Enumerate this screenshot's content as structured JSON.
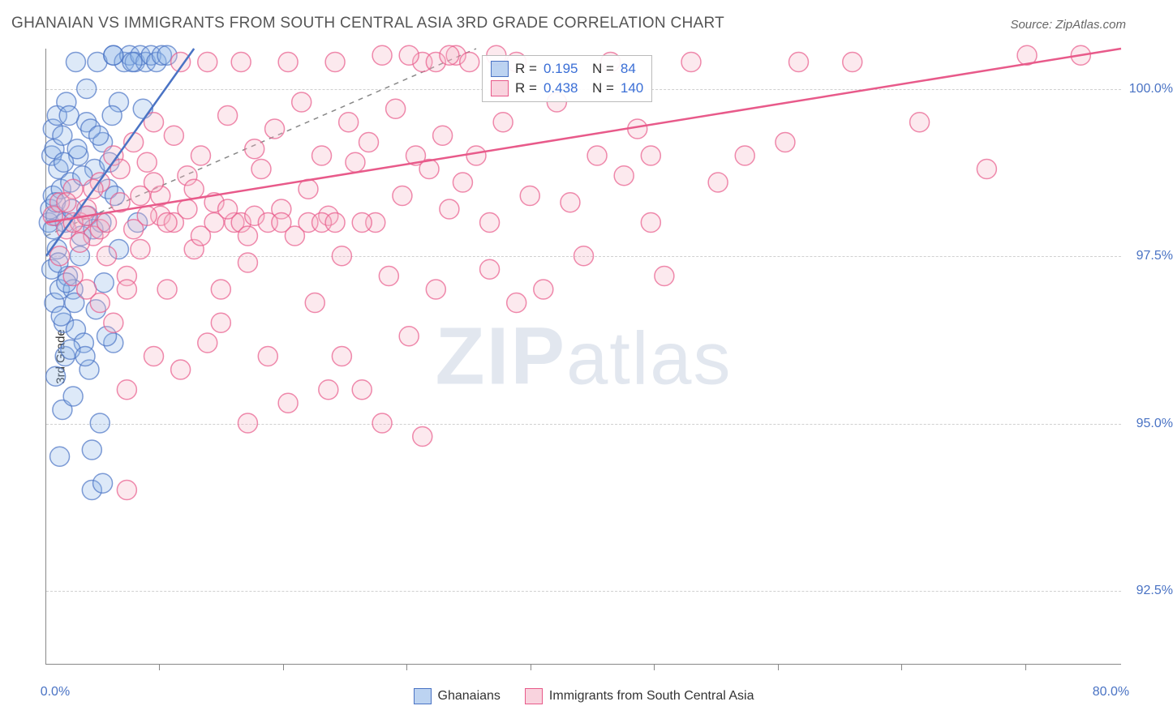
{
  "title": "GHANAIAN VS IMMIGRANTS FROM SOUTH CENTRAL ASIA 3RD GRADE CORRELATION CHART",
  "source": "Source: ZipAtlas.com",
  "watermark_a": "ZIP",
  "watermark_b": "atlas",
  "chart": {
    "type": "scatter",
    "ylabel": "3rd Grade",
    "xlim": [
      0,
      80
    ],
    "ylim": [
      91.4,
      100.6
    ],
    "xtick_positions_pct": [
      10.5,
      22.0,
      33.5,
      45.0,
      56.5,
      68.0,
      79.5,
      91.0
    ],
    "yticks": [
      {
        "val": 92.5,
        "label": "92.5%"
      },
      {
        "val": 95.0,
        "label": "95.0%"
      },
      {
        "val": 97.5,
        "label": "97.5%"
      },
      {
        "val": 100.0,
        "label": "100.0%"
      }
    ],
    "xlabels": [
      {
        "pos_pct": 0,
        "label": "0.0%"
      },
      {
        "pos_pct": 100,
        "label": "80.0%"
      }
    ],
    "background_color": "#ffffff",
    "grid_color": "#d0d0d0",
    "marker_radius": 12,
    "marker_fill_opacity": 0.3,
    "marker_stroke_width": 1.5,
    "trendline_width": 2.5,
    "dashed_ref_line": {
      "x1": 0,
      "y1": 97.8,
      "x2": 32,
      "y2": 100.6,
      "color": "#888888"
    },
    "series": [
      {
        "name": "Ghanaians",
        "color_fill": "#8fb5e8",
        "color_stroke": "#4a73c4",
        "R": "0.195",
        "N": "84",
        "trendline": {
          "x1": 0,
          "y1": 97.5,
          "x2": 11,
          "y2": 100.6
        },
        "points": [
          [
            0.2,
            98.0
          ],
          [
            0.3,
            98.2
          ],
          [
            0.4,
            97.3
          ],
          [
            0.5,
            98.4
          ],
          [
            0.6,
            96.8
          ],
          [
            0.7,
            98.1
          ],
          [
            0.8,
            97.6
          ],
          [
            0.4,
            99.0
          ],
          [
            0.5,
            99.4
          ],
          [
            0.6,
            99.1
          ],
          [
            0.8,
            99.6
          ],
          [
            0.9,
            98.8
          ],
          [
            1.0,
            97.0
          ],
          [
            1.1,
            98.5
          ],
          [
            1.2,
            99.3
          ],
          [
            1.3,
            96.5
          ],
          [
            1.4,
            98.0
          ],
          [
            1.5,
            99.8
          ],
          [
            1.6,
            97.2
          ],
          [
            1.8,
            98.6
          ],
          [
            2.0,
            97.0
          ],
          [
            2.2,
            96.4
          ],
          [
            2.4,
            99.0
          ],
          [
            2.6,
            97.8
          ],
          [
            2.8,
            96.2
          ],
          [
            3.0,
            99.5
          ],
          [
            3.2,
            95.8
          ],
          [
            3.4,
            94.6
          ],
          [
            3.6,
            98.8
          ],
          [
            3.0,
            100.0
          ],
          [
            3.4,
            94.0
          ],
          [
            1.0,
            94.5
          ],
          [
            1.2,
            95.2
          ],
          [
            1.4,
            96.0
          ],
          [
            0.7,
            95.7
          ],
          [
            4.0,
            95.0
          ],
          [
            4.2,
            94.1
          ],
          [
            1.8,
            96.1
          ],
          [
            2.0,
            95.4
          ],
          [
            2.2,
            100.4
          ],
          [
            5.0,
            100.5
          ],
          [
            5.4,
            99.8
          ],
          [
            5.8,
            100.4
          ],
          [
            6.2,
            100.5
          ],
          [
            6.6,
            100.4
          ],
          [
            7.0,
            100.5
          ],
          [
            7.4,
            100.4
          ],
          [
            7.8,
            100.5
          ],
          [
            8.2,
            100.4
          ],
          [
            8.6,
            100.5
          ],
          [
            6.8,
            98.0
          ],
          [
            7.2,
            99.7
          ],
          [
            3.8,
            100.4
          ],
          [
            4.2,
            99.2
          ],
          [
            4.6,
            98.5
          ],
          [
            5.0,
            96.2
          ],
          [
            5.4,
            97.6
          ],
          [
            0.5,
            97.9
          ],
          [
            0.7,
            98.3
          ],
          [
            0.9,
            97.4
          ],
          [
            1.1,
            96.6
          ],
          [
            1.3,
            98.9
          ],
          [
            1.5,
            97.1
          ],
          [
            1.7,
            99.6
          ],
          [
            1.9,
            98.2
          ],
          [
            2.1,
            96.8
          ],
          [
            2.3,
            99.1
          ],
          [
            2.5,
            97.5
          ],
          [
            2.7,
            98.7
          ],
          [
            2.9,
            96.0
          ],
          [
            3.1,
            98.1
          ],
          [
            3.3,
            99.4
          ],
          [
            3.5,
            97.9
          ],
          [
            3.7,
            96.7
          ],
          [
            3.9,
            99.3
          ],
          [
            4.1,
            98.0
          ],
          [
            4.3,
            97.1
          ],
          [
            4.5,
            96.3
          ],
          [
            4.7,
            98.9
          ],
          [
            4.9,
            99.6
          ],
          [
            5.1,
            98.4
          ],
          [
            9.0,
            100.5
          ],
          [
            5.0,
            100.5
          ],
          [
            6.4,
            100.4
          ]
        ]
      },
      {
        "name": "Immigrants from South Central Asia",
        "color_fill": "#f5b5c8",
        "color_stroke": "#e85a8a",
        "R": "0.438",
        "N": "140",
        "trendline": {
          "x1": 0,
          "y1": 98.0,
          "x2": 80,
          "y2": 100.6
        },
        "points": [
          [
            0.5,
            98.1
          ],
          [
            1.0,
            98.3
          ],
          [
            1.5,
            97.9
          ],
          [
            2.0,
            98.5
          ],
          [
            2.5,
            98.0
          ],
          [
            3.0,
            98.2
          ],
          [
            3.5,
            97.8
          ],
          [
            4.0,
            98.6
          ],
          [
            4.5,
            97.5
          ],
          [
            5.0,
            99.0
          ],
          [
            5.5,
            98.8
          ],
          [
            6.0,
            97.2
          ],
          [
            6.5,
            99.2
          ],
          [
            7.0,
            98.4
          ],
          [
            7.5,
            98.9
          ],
          [
            8.0,
            99.5
          ],
          [
            8.5,
            98.1
          ],
          [
            9.0,
            97.0
          ],
          [
            9.5,
            99.3
          ],
          [
            10.0,
            100.4
          ],
          [
            10.5,
            98.7
          ],
          [
            11.0,
            97.6
          ],
          [
            11.5,
            99.0
          ],
          [
            12.0,
            100.4
          ],
          [
            12.5,
            98.3
          ],
          [
            13.0,
            96.5
          ],
          [
            13.5,
            99.6
          ],
          [
            14.0,
            98.0
          ],
          [
            14.5,
            100.4
          ],
          [
            15.0,
            97.4
          ],
          [
            15.5,
            99.1
          ],
          [
            16.0,
            98.8
          ],
          [
            16.5,
            96.0
          ],
          [
            17.0,
            99.4
          ],
          [
            17.5,
            98.2
          ],
          [
            18.0,
            100.4
          ],
          [
            18.5,
            97.8
          ],
          [
            19.0,
            99.8
          ],
          [
            19.5,
            98.5
          ],
          [
            20.0,
            96.8
          ],
          [
            20.5,
            99.0
          ],
          [
            21.0,
            98.1
          ],
          [
            21.5,
            100.4
          ],
          [
            22.0,
            97.5
          ],
          [
            22.5,
            99.5
          ],
          [
            23.0,
            98.9
          ],
          [
            23.5,
            95.5
          ],
          [
            24.0,
            99.2
          ],
          [
            24.5,
            98.0
          ],
          [
            25.0,
            100.5
          ],
          [
            25.5,
            97.2
          ],
          [
            26.0,
            99.7
          ],
          [
            26.5,
            98.4
          ],
          [
            27.0,
            96.3
          ],
          [
            27.5,
            99.0
          ],
          [
            28.0,
            100.4
          ],
          [
            28.5,
            98.8
          ],
          [
            29.0,
            97.0
          ],
          [
            29.5,
            99.3
          ],
          [
            30.0,
            98.2
          ],
          [
            30.5,
            100.5
          ],
          [
            31.0,
            98.6
          ],
          [
            32.0,
            99.0
          ],
          [
            33.0,
            98.0
          ],
          [
            34.0,
            99.5
          ],
          [
            35.0,
            100.4
          ],
          [
            36.0,
            98.4
          ],
          [
            37.0,
            97.0
          ],
          [
            38.0,
            99.8
          ],
          [
            39.0,
            98.3
          ],
          [
            40.0,
            97.5
          ],
          [
            41.0,
            99.0
          ],
          [
            42.0,
            100.4
          ],
          [
            43.0,
            98.7
          ],
          [
            44.0,
            99.4
          ],
          [
            45.0,
            98.0
          ],
          [
            46.0,
            97.2
          ],
          [
            28.0,
            94.8
          ],
          [
            15.0,
            95.0
          ],
          [
            21.0,
            95.5
          ],
          [
            25.0,
            95.0
          ],
          [
            10.0,
            95.8
          ],
          [
            12.0,
            96.2
          ],
          [
            8.0,
            96.0
          ],
          [
            6.0,
            95.5
          ],
          [
            33.0,
            97.3
          ],
          [
            45.0,
            99.0
          ],
          [
            50.0,
            98.6
          ],
          [
            55.0,
            99.2
          ],
          [
            60.0,
            100.4
          ],
          [
            65.0,
            99.5
          ],
          [
            70.0,
            98.8
          ],
          [
            73.0,
            100.5
          ],
          [
            27.0,
            100.5
          ],
          [
            29.0,
            100.4
          ],
          [
            30.0,
            100.5
          ],
          [
            31.5,
            100.4
          ],
          [
            33.5,
            100.5
          ],
          [
            48.0,
            100.4
          ],
          [
            52.0,
            99.0
          ],
          [
            56.0,
            100.4
          ],
          [
            35.0,
            96.8
          ],
          [
            18.0,
            95.3
          ],
          [
            22.0,
            96.0
          ],
          [
            6.0,
            94.0
          ],
          [
            2.0,
            98.0
          ],
          [
            3.0,
            98.1
          ],
          [
            4.0,
            97.9
          ],
          [
            1.5,
            98.3
          ],
          [
            2.5,
            97.7
          ],
          [
            3.5,
            98.5
          ],
          [
            4.5,
            98.0
          ],
          [
            5.5,
            98.3
          ],
          [
            6.5,
            97.9
          ],
          [
            7.5,
            98.1
          ],
          [
            8.5,
            98.4
          ],
          [
            9.5,
            98.0
          ],
          [
            10.5,
            98.2
          ],
          [
            11.5,
            97.8
          ],
          [
            12.5,
            98.0
          ],
          [
            13.5,
            98.2
          ],
          [
            14.5,
            98.0
          ],
          [
            15.5,
            98.1
          ],
          [
            16.5,
            98.0
          ],
          [
            17.5,
            98.0
          ],
          [
            19.5,
            98.0
          ],
          [
            20.5,
            98.0
          ],
          [
            21.5,
            98.0
          ],
          [
            23.5,
            98.0
          ],
          [
            77.0,
            100.5
          ],
          [
            7.0,
            97.6
          ],
          [
            5.0,
            96.5
          ],
          [
            3.0,
            97.0
          ],
          [
            1.0,
            97.5
          ],
          [
            2.0,
            97.2
          ],
          [
            4.0,
            96.8
          ],
          [
            6.0,
            97.0
          ],
          [
            8.0,
            98.6
          ],
          [
            9.0,
            98.0
          ],
          [
            11.0,
            98.5
          ],
          [
            13.0,
            97.0
          ],
          [
            15.0,
            97.8
          ]
        ]
      }
    ],
    "legend_inset": {
      "left_pct": 40.5,
      "top_pct": 1
    },
    "legend_bottom": true
  }
}
